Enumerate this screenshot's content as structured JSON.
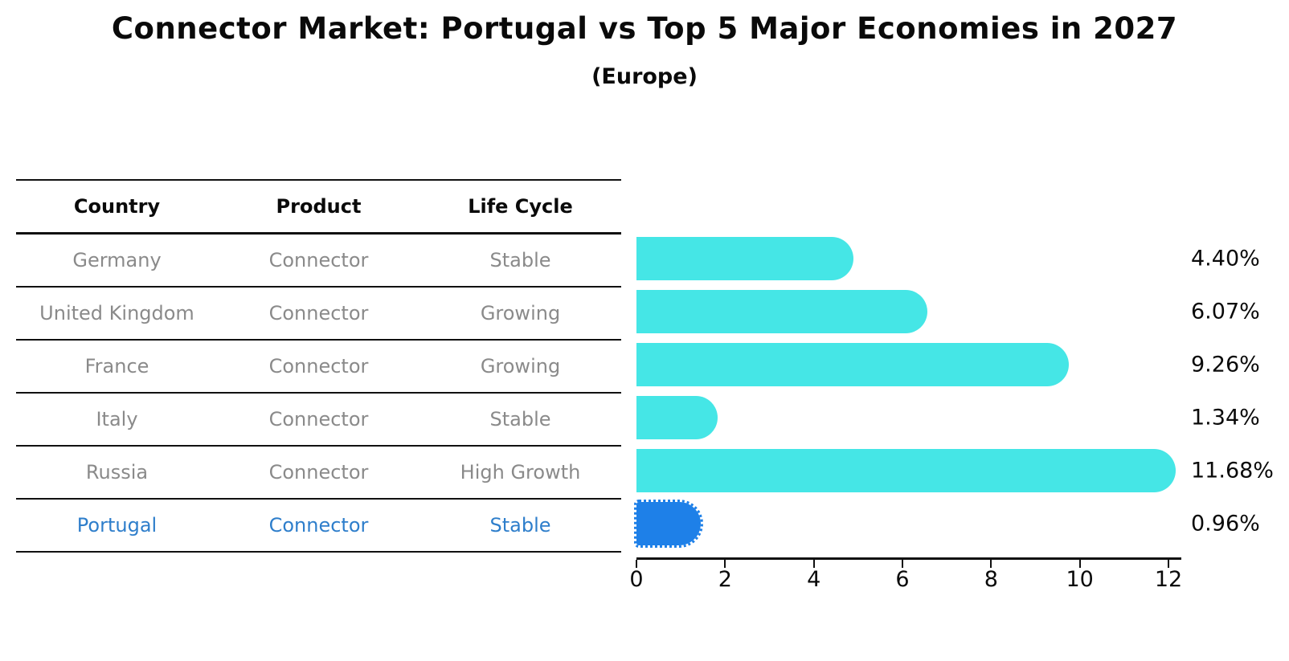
{
  "title": "Connector Market: Portugal vs Top 5 Major Economies in 2027",
  "subtitle": "(Europe)",
  "table": {
    "headers": [
      "Country",
      "Product",
      "Life Cycle"
    ],
    "rows": [
      {
        "country": "Germany",
        "product": "Connector",
        "life_cycle": "Stable",
        "highlight": false
      },
      {
        "country": "United Kingdom",
        "product": "Connector",
        "life_cycle": "Growing",
        "highlight": false
      },
      {
        "country": "France",
        "product": "Connector",
        "life_cycle": "Growing",
        "highlight": false
      },
      {
        "country": "Italy",
        "product": "Connector",
        "life_cycle": "Stable",
        "highlight": false
      },
      {
        "country": "Russia",
        "product": "Connector",
        "life_cycle": "High Growth",
        "highlight": false
      },
      {
        "country": "Portugal",
        "product": "Connector",
        "life_cycle": "Stable",
        "highlight": true
      }
    ]
  },
  "chart_data": {
    "type": "bar",
    "orientation": "horizontal",
    "title": "Connector Market: Portugal vs Top 5 Major Economies in 2027",
    "subtitle": "(Europe)",
    "categories": [
      "Germany",
      "United Kingdom",
      "France",
      "Italy",
      "Russia",
      "Portugal"
    ],
    "values": [
      4.4,
      6.07,
      9.26,
      1.34,
      11.68,
      0.96
    ],
    "value_labels": [
      "4.40%",
      "6.07%",
      "9.26%",
      "1.34%",
      "11.68%",
      "0.96%"
    ],
    "xlim": [
      0,
      12
    ],
    "xticks": [
      0,
      2,
      4,
      6,
      8,
      10,
      12
    ],
    "grid": false,
    "legend": "none",
    "bar_color": "#45e6e6",
    "highlight_color": "#1e80e8",
    "highlight_index": 5,
    "highlight_style": "dotted-outline",
    "value_label_position": "right-outside"
  },
  "colors": {
    "bar": "#45e6e6",
    "highlight_bar": "#1e80e8",
    "highlight_text": "#2e7ecb",
    "muted_text": "#8a8a8a",
    "axis": "#111111"
  }
}
